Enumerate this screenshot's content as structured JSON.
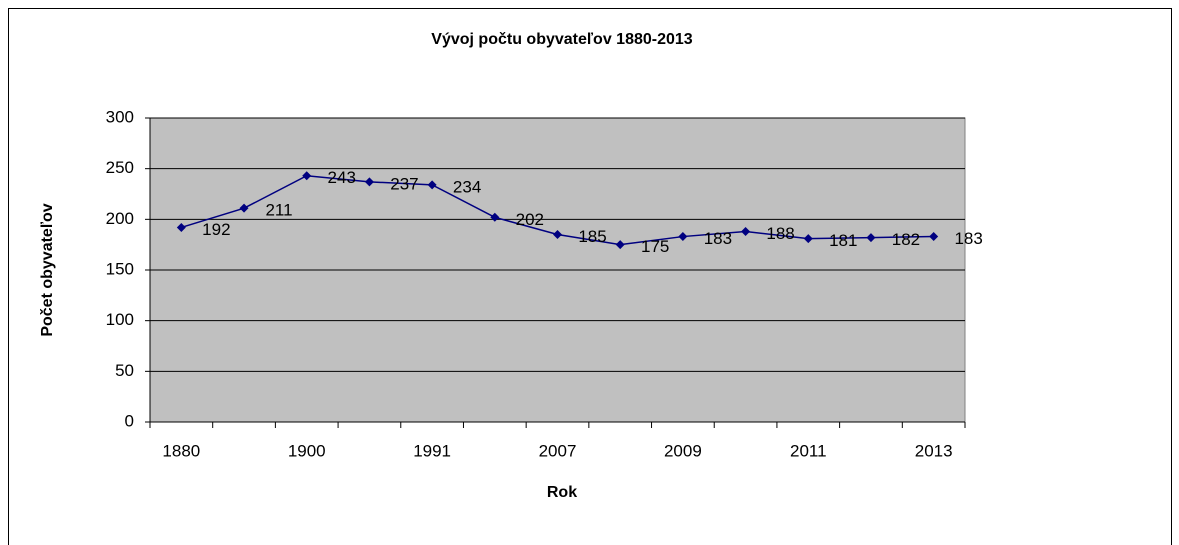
{
  "chart_data": {
    "type": "line",
    "title": "Vývoj počtu obyvateľov 1880-2013",
    "x_label": "Rok",
    "y_label": "Počet obyvateľov",
    "categories": [
      "1880",
      null,
      "1900",
      null,
      "1991",
      null,
      "2007",
      null,
      "2009",
      null,
      "2011",
      null,
      "2013"
    ],
    "values": [
      192,
      211,
      243,
      237,
      234,
      202,
      185,
      175,
      183,
      188,
      181,
      182,
      183
    ],
    "color": "#000080",
    "ylim": [
      0,
      300
    ],
    "yticks": [
      0,
      50,
      100,
      150,
      200,
      250,
      300
    ],
    "grid": true
  }
}
